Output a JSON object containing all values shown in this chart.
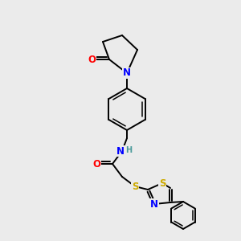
{
  "background_color": "#ebebeb",
  "bond_color": "#000000",
  "atom_colors": {
    "O": "#ff0000",
    "N": "#0000ff",
    "S": "#ccaa00",
    "H": "#4a9a9a",
    "C": "#000000"
  },
  "font_size_atom": 8.5,
  "font_size_h": 7,
  "figsize": [
    3.0,
    3.0
  ],
  "dpi": 100,
  "lw": 1.4,
  "lw2": 1.1
}
